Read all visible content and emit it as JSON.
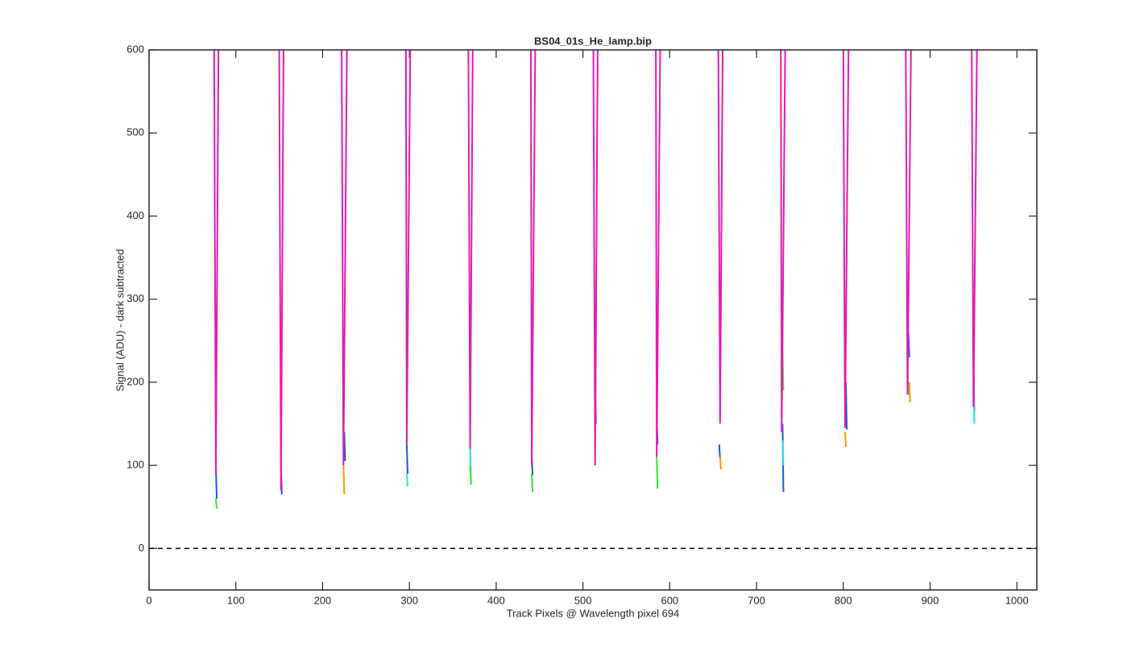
{
  "chart_data": {
    "type": "line",
    "title": "BS04_01s_He_lamp.bip",
    "xlabel": "Track Pixels @ Wavelength pixel 694",
    "ylabel": "Signal (ADU) - dark subtracted",
    "xlim": [
      0,
      1023
    ],
    "ylim": [
      -50,
      600
    ],
    "xticks": [
      0,
      100,
      200,
      300,
      400,
      500,
      600,
      700,
      800,
      900,
      1000
    ],
    "yticks": [
      0,
      100,
      200,
      300,
      400,
      500,
      600
    ],
    "reference_line": 0,
    "series": [
      {
        "color": "#0b5fe6",
        "x": [
          77,
          78,
          null,
          152,
          153,
          null,
          225,
          226,
          null,
          297,
          298,
          null,
          441,
          442,
          null,
          514,
          515,
          null,
          585,
          586,
          null,
          657,
          658,
          null,
          730,
          731,
          null,
          803,
          804,
          null,
          875,
          876,
          null,
          950,
          951
        ],
        "values": [
          100,
          60,
          null,
          100,
          65,
          null,
          140,
          105,
          null,
          125,
          90,
          null,
          110,
          88,
          null,
          200,
          150,
          null,
          160,
          125,
          null,
          125,
          108,
          null,
          150,
          68,
          null,
          200,
          143,
          null,
          260,
          230,
          null,
          230,
          165
        ]
      },
      {
        "color": "#19e6e6",
        "x": [
          297,
          298,
          null,
          370,
          371,
          null,
          730,
          731,
          null,
          950,
          951
        ],
        "values": [
          90,
          75,
          null,
          120,
          78,
          null,
          130,
          100,
          null,
          200,
          150
        ]
      },
      {
        "color": "#33e633",
        "x": [
          77,
          78,
          null,
          370,
          371,
          null,
          441,
          442,
          null,
          585,
          586,
          null,
          730,
          731,
          null,
          874,
          875
        ],
        "values": [
          60,
          48,
          null,
          100,
          77,
          null,
          90,
          68,
          null,
          110,
          72,
          null,
          238,
          190,
          null,
          225,
          185
        ]
      },
      {
        "color": "#ff9900",
        "x": [
          224,
          225,
          null,
          658,
          659,
          null,
          802,
          803,
          null,
          876,
          877
        ],
        "values": [
          100,
          65,
          null,
          110,
          95,
          null,
          140,
          122,
          null,
          200,
          176
        ]
      },
      {
        "color": "#e619b3",
        "x": [
          75,
          77,
          80,
          null,
          150,
          152,
          155,
          null,
          222,
          224,
          228,
          null,
          296,
          297,
          301,
          null,
          368,
          370,
          373,
          null,
          440,
          441,
          445,
          null,
          512,
          514,
          517,
          null,
          584,
          585,
          589,
          null,
          656,
          658,
          661,
          null,
          728,
          729,
          733,
          null,
          800,
          802,
          806,
          null,
          872,
          874,
          878,
          null,
          948,
          950,
          954
        ],
        "values": [
          600,
          90,
          600,
          null,
          600,
          70,
          600,
          null,
          600,
          100,
          600,
          null,
          600,
          125,
          600,
          null,
          600,
          120,
          600,
          null,
          600,
          100,
          600,
          null,
          600,
          100,
          600,
          null,
          600,
          110,
          600,
          null,
          600,
          150,
          600,
          null,
          600,
          140,
          600,
          null,
          600,
          145,
          600,
          null,
          600,
          185,
          600,
          null,
          600,
          170,
          600
        ]
      }
    ]
  }
}
